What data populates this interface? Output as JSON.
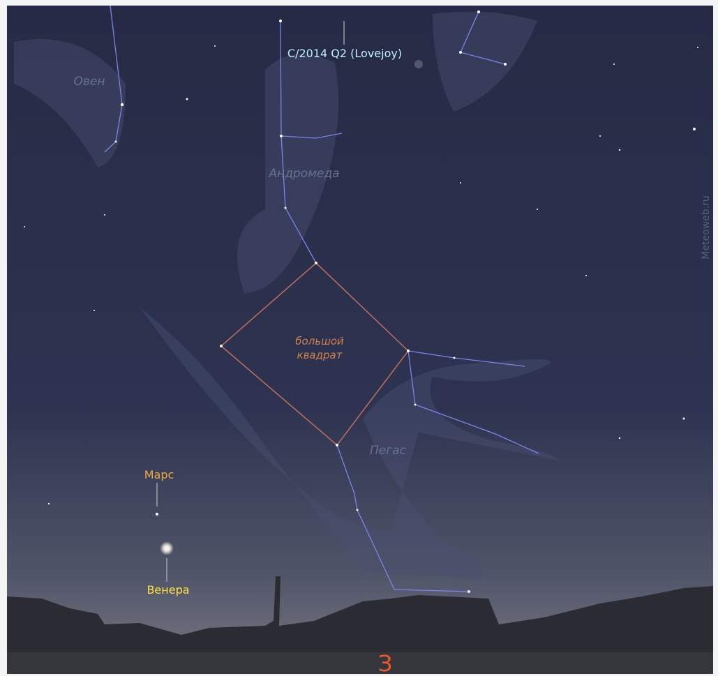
{
  "labels": {
    "comet": "C/2014 Q2 (Lovejoy)",
    "aries": "Овен",
    "andromeda": "Андромеда",
    "great_square": [
      "большой",
      "квадрат"
    ],
    "pegasus": "Пегас",
    "mars": "Марс",
    "venus": "Венера",
    "watermark": "Meteoweb.ru",
    "direction": "З"
  }
}
